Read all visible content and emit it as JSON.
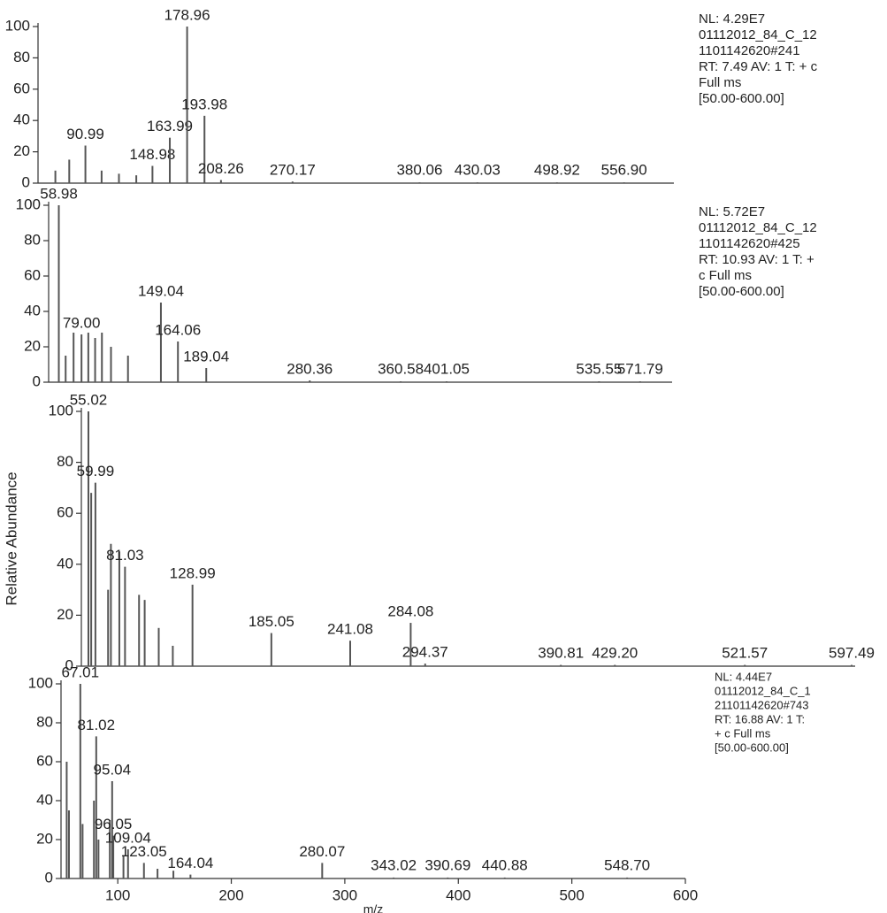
{
  "chart_data": [
    {
      "type": "bar",
      "color": "#555555",
      "xlim": [
        50,
        600
      ],
      "ylim": [
        0,
        100
      ],
      "yticks": [
        0,
        20,
        40,
        60,
        80,
        100
      ],
      "notes": [
        "NL: 4.29E7",
        "01112012_84_C_12",
        "1101142620#241",
        "RT: 7.49  AV: 1 T: + c",
        "Full ms",
        "[50.00-600.00]"
      ],
      "x": [
        65,
        77,
        90.99,
        105,
        120,
        135,
        148.98,
        163.99,
        178.96,
        193.98,
        208.26,
        270.17,
        380.06,
        430.03,
        498.92,
        556.9
      ],
      "values": [
        8,
        15,
        24,
        8,
        6,
        5,
        11,
        29,
        100,
        43,
        2,
        1,
        0.5,
        0.5,
        0.5,
        0.5
      ],
      "x_labels": [
        null,
        null,
        "90.99",
        null,
        null,
        null,
        "148.98",
        "163.99",
        "178.96",
        "193.98",
        "208.26",
        "270.17",
        "380.06",
        "430.03",
        "498.92",
        "556.90"
      ]
    },
    {
      "type": "bar",
      "color": "#555555",
      "xlim": [
        50,
        600
      ],
      "ylim": [
        0,
        100
      ],
      "yticks": [
        0,
        20,
        40,
        60,
        80,
        100
      ],
      "notes": [
        "NL: 5.72E7",
        "01112012_84_C_12",
        "1101142620#425",
        "RT: 10.93  AV: 1 T: +",
        "c Full ms",
        "[50.00-600.00]"
      ],
      "x": [
        58.98,
        65,
        72,
        79.0,
        85,
        91,
        97,
        105,
        120,
        149.04,
        164.06,
        189.04,
        280.36,
        360.58,
        401.05,
        535.55,
        571.79
      ],
      "values": [
        100,
        15,
        28,
        27,
        28,
        25,
        28,
        20,
        15,
        45,
        23,
        8,
        1,
        0.5,
        0.5,
        0.5,
        0.5
      ],
      "x_labels": [
        "58.98",
        null,
        null,
        "79.00",
        null,
        null,
        null,
        null,
        null,
        "149.04",
        "164.06",
        "189.04",
        "280.36",
        "360.58",
        "401.05",
        "535.55",
        "571.79"
      ]
    },
    {
      "type": "bar",
      "color": "#555555",
      "xlim": [
        50,
        600
      ],
      "ylim": [
        0,
        100
      ],
      "yticks": [
        0,
        20,
        40,
        60,
        80,
        100
      ],
      "ylabel": "Relative Abundance",
      "x": [
        55.02,
        57,
        59.99,
        69,
        71,
        77,
        81.03,
        91,
        95,
        105,
        115,
        128.99,
        185.05,
        241.08,
        284.08,
        294.37,
        390.81,
        429.2,
        521.57,
        597.49
      ],
      "values": [
        100,
        68,
        72,
        30,
        48,
        45,
        39,
        28,
        26,
        15,
        8,
        32,
        13,
        10,
        17,
        1,
        0.5,
        0.5,
        0.5,
        0.5
      ],
      "x_labels": [
        "55.02",
        null,
        "59.99",
        null,
        null,
        null,
        "81.03",
        null,
        null,
        null,
        null,
        "128.99",
        "185.05",
        "241.08",
        "284.08",
        "294.37",
        "390.81",
        "429.20",
        "521.57",
        "597.49"
      ]
    },
    {
      "type": "bar",
      "color": "#555555",
      "xlim": [
        50,
        600
      ],
      "ylim": [
        0,
        100
      ],
      "yticks": [
        0,
        20,
        40,
        60,
        80,
        100
      ],
      "xticks": [
        100,
        200,
        300,
        400,
        500,
        600
      ],
      "xlabel": "m/z",
      "notes": [
        "NL: 4.44E7",
        "01112012_84_C_1",
        "21101142620#743",
        "RT: 16.88  AV: 1 T:",
        "+ c Full ms",
        "[50.00-600.00]"
      ],
      "x": [
        55,
        57,
        67.01,
        69,
        79,
        81.02,
        83,
        93,
        95.04,
        96.05,
        105,
        109.04,
        123.05,
        135,
        149,
        164.04,
        280.07,
        343.02,
        390.69,
        440.88,
        548.7
      ],
      "values": [
        60,
        35,
        100,
        28,
        40,
        73,
        20,
        30,
        50,
        22,
        12,
        15,
        8,
        5,
        4,
        2,
        8,
        0.5,
        0.5,
        0.5,
        0.5
      ],
      "x_labels": [
        null,
        null,
        "67.01",
        null,
        null,
        "81.02",
        null,
        null,
        "95.04",
        "96.05",
        null,
        "109.04",
        "123.05",
        null,
        null,
        "164.04",
        "280.07",
        "343.02",
        "390.69",
        "440.88",
        "548.70"
      ]
    }
  ]
}
